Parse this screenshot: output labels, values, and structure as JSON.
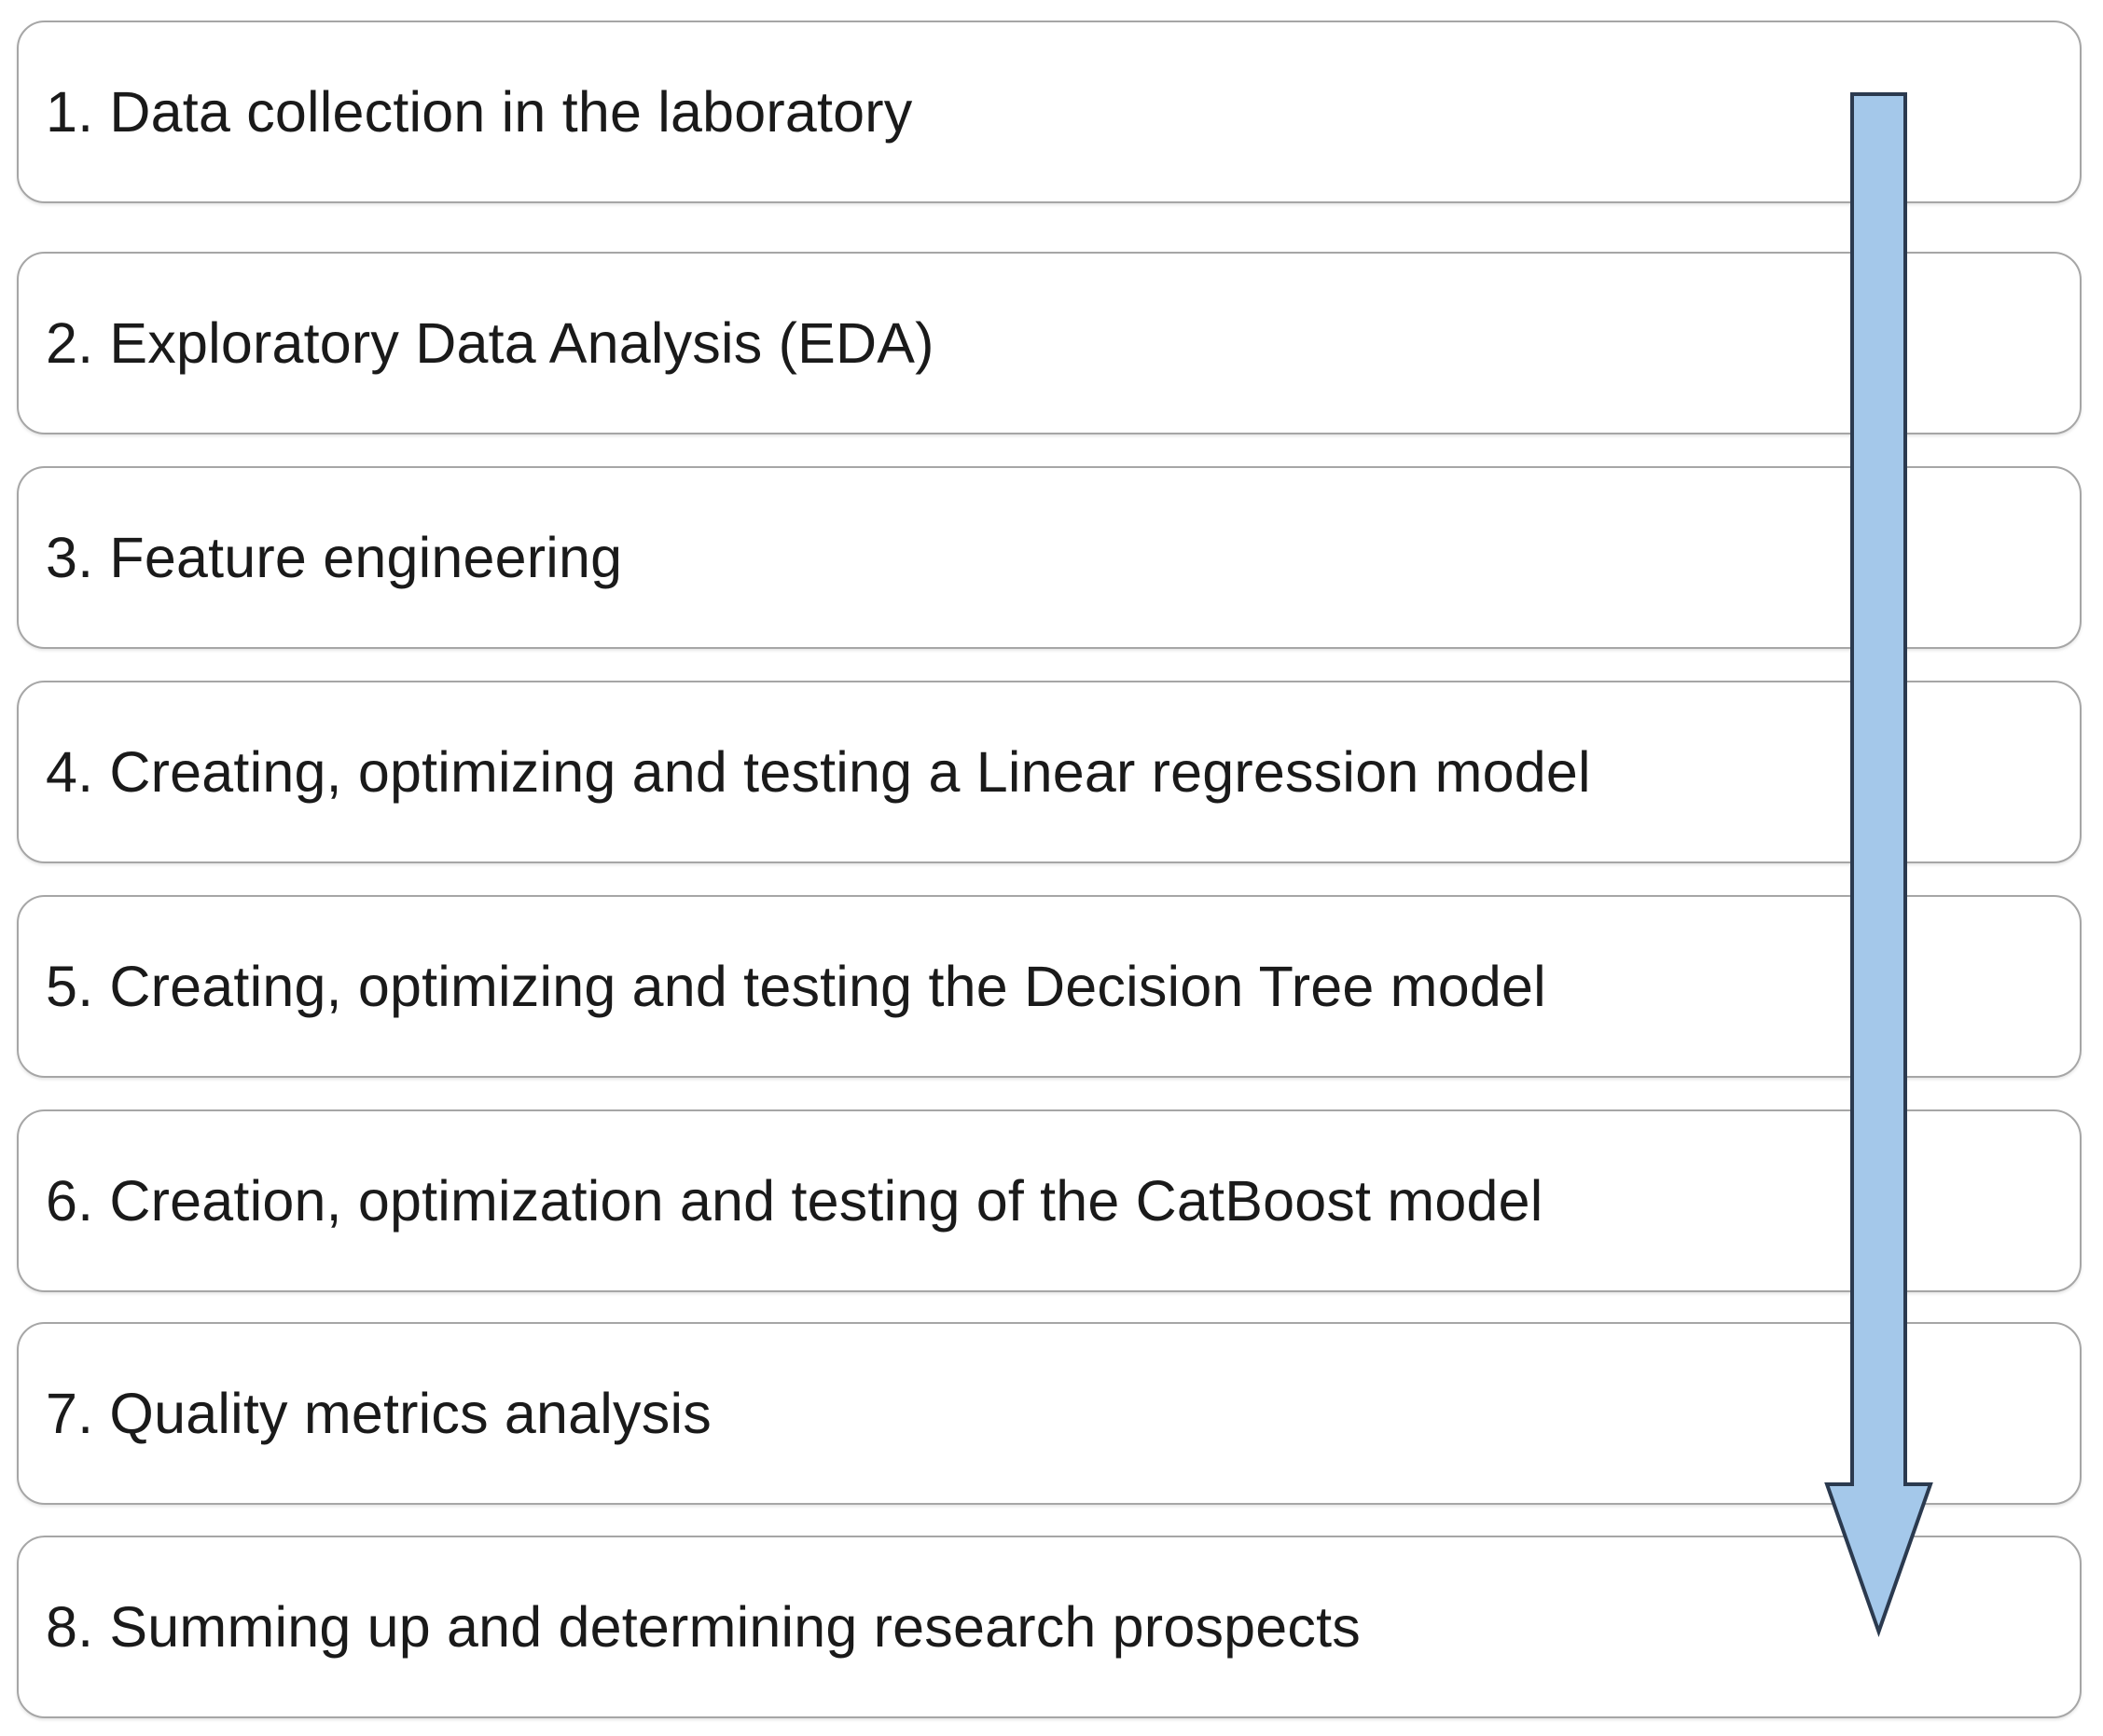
{
  "steps": [
    {
      "label": "1. Data collection in the laboratory"
    },
    {
      "label": "2. Exploratory Data Analysis (EDA)"
    },
    {
      "label": "3. Feature engineering"
    },
    {
      "label": "4. Creating, optimizing and testing a Linear regression model"
    },
    {
      "label": "5. Creating, optimizing and testing the Decision Tree model"
    },
    {
      "label": "6. Creation, optimization and testing of the CatBoost model"
    },
    {
      "label": "7. Quality metrics analysis"
    },
    {
      "label": "8. Summing up and determining research prospects"
    }
  ],
  "arrow": {
    "direction": "down",
    "fill": "#a4c8ea",
    "stroke": "#2b3a4f"
  },
  "colors": {
    "box_border": "#a6a6a6",
    "text": "#1a1a1a"
  }
}
